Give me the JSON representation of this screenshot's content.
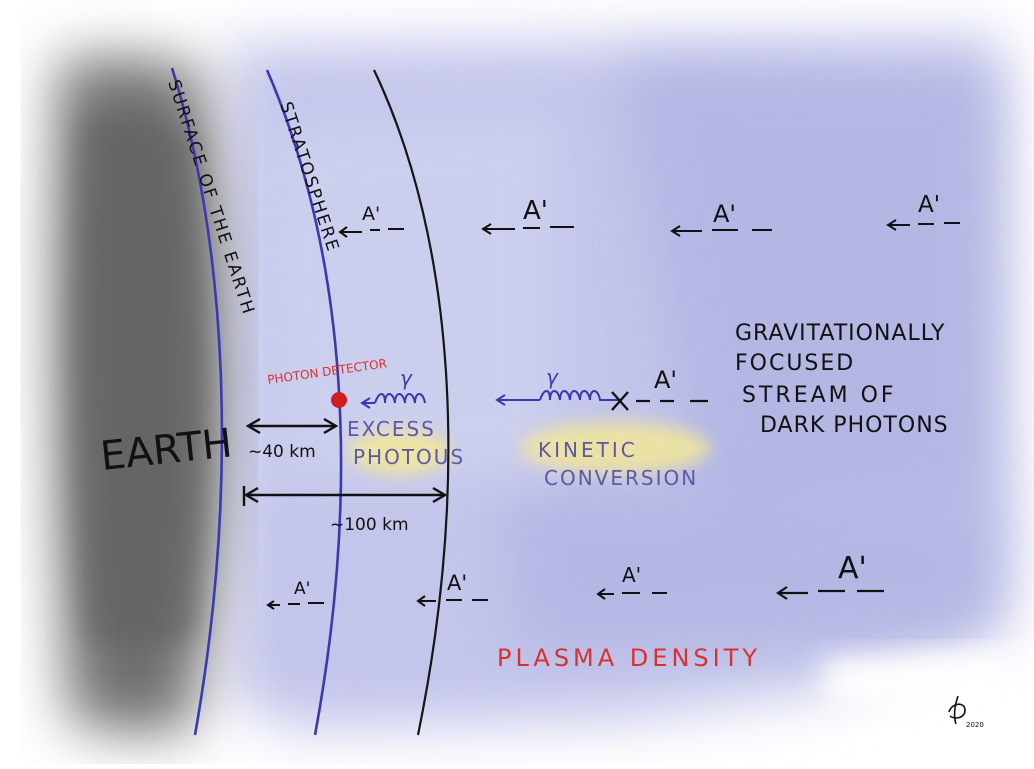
{
  "labels": {
    "earth": "EARTH",
    "surface": "SURFACE OF THE EARTH",
    "stratosphere": "STRATOSPHERE",
    "photon_detector": "PHOTON DETECTOR",
    "gamma": "γ",
    "excess": "EXCESS",
    "photons": "PHOTOUS",
    "kinetic": "KINETIC",
    "conversion": "CONVERSION",
    "grav1": "GRAVITATIONALLY",
    "grav2": "FOCUSED",
    "grav3": "STREAM OF",
    "grav4": "DARK PHOTONS",
    "dist_40": "~40 km",
    "dist_100": "~100 km",
    "plasma": "PLASMA DENSITY",
    "dark_photon": "A'",
    "signature_year": "2020"
  },
  "colors": {
    "ink": "#111111",
    "blue_line": "#3a3ab0",
    "red": "#d8322e",
    "detector": "#cc1f1f",
    "violet_text": "#5a5aa8",
    "highlight": "#f3e79a",
    "sky": "#b9bce6",
    "earth_gray": "#7a7a7a"
  }
}
